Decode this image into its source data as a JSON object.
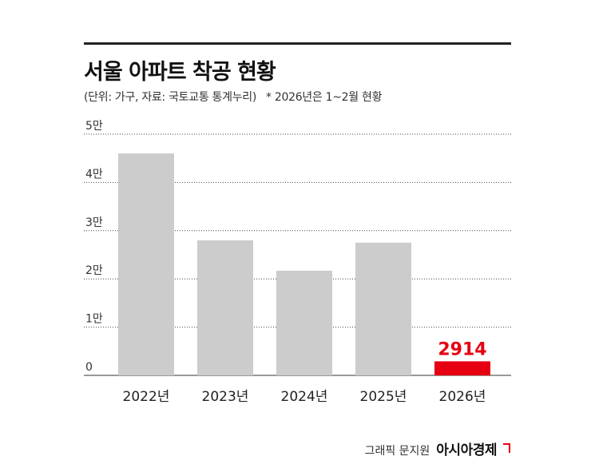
{
  "header": {
    "title": "서울 아파트 착공 현황",
    "subtitle": "(단위: 가구, 자료: 국토교통 통계누리)",
    "note": "* 2026년은 1~2월 현황"
  },
  "footer": {
    "credit": "그래픽 문지원",
    "brand": "아시아경제"
  },
  "colors": {
    "bar": "#cccccc",
    "highlight": "#e60012",
    "grid": "#444444"
  },
  "chart_data": {
    "type": "bar",
    "categories": [
      "2022년",
      "2023년",
      "2024년",
      "2025년",
      "2026년"
    ],
    "values": [
      46000,
      28000,
      21700,
      27500,
      2914
    ],
    "highlight_index": 4,
    "data_labels": [
      "",
      "",
      "",
      "",
      "2914"
    ],
    "yticks": [
      0,
      10000,
      20000,
      30000,
      40000,
      50000
    ],
    "ytick_labels": [
      "0",
      "1만",
      "2만",
      "3만",
      "4만",
      "5만"
    ],
    "ylim": [
      0,
      50000
    ],
    "grid": true,
    "legend": "none"
  }
}
